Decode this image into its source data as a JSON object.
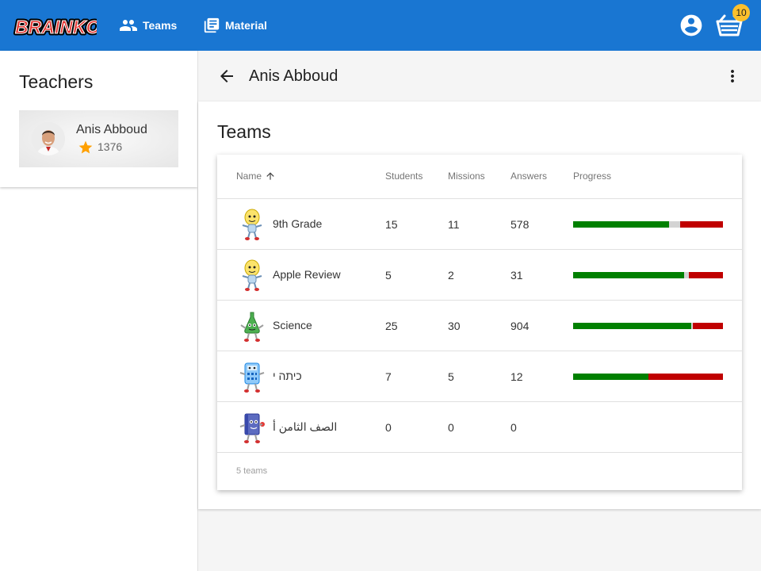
{
  "app": {
    "logo_text": "BRAINKOS",
    "nav": [
      {
        "label": "Teams",
        "icon": "people-icon"
      },
      {
        "label": "Material",
        "icon": "library-books-icon"
      }
    ],
    "cart_badge": "10",
    "brand_color": "#1976d2"
  },
  "sidebar": {
    "title": "Teachers",
    "teacher": {
      "name": "Anis Abboud",
      "score": "1376"
    }
  },
  "header": {
    "title": "Anis Abboud"
  },
  "teams": {
    "title": "Teams",
    "columns": {
      "name": "Name",
      "students": "Students",
      "missions": "Missions",
      "answers": "Answers",
      "progress": "Progress"
    },
    "rows": [
      {
        "name": "9th Grade",
        "students": "15",
        "missions": "11",
        "answers": "578",
        "progress": {
          "correct": 0.64,
          "unanswered": 0.075,
          "wrong": 0.285
        },
        "avatar": "lightbulb-character-icon"
      },
      {
        "name": "Apple Review",
        "students": "5",
        "missions": "2",
        "answers": "31",
        "progress": {
          "correct": 0.74,
          "unanswered": 0.03,
          "wrong": 0.23
        },
        "avatar": "lightbulb-character-icon"
      },
      {
        "name": "Science",
        "students": "25",
        "missions": "30",
        "answers": "904",
        "progress": {
          "correct": 0.79,
          "unanswered": 0.01,
          "wrong": 0.2
        },
        "avatar": "flask-character-icon"
      },
      {
        "name": "כיתה י",
        "students": "7",
        "missions": "5",
        "answers": "12",
        "progress": {
          "correct": 0.5,
          "unanswered": 0.0,
          "wrong": 0.5
        },
        "avatar": "calculator-character-icon"
      },
      {
        "name": "الصف الثامن أ",
        "students": "0",
        "missions": "0",
        "answers": "0",
        "progress": null,
        "avatar": "book-character-icon"
      }
    ],
    "footer": "5 teams"
  },
  "colors": {
    "correct": "#008000",
    "unanswered": "#d3d3d3",
    "wrong": "#c00000",
    "badge": "#fbc02d"
  }
}
